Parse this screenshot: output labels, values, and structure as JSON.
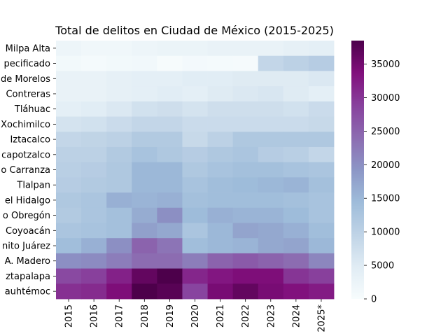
{
  "chart_data": {
    "type": "heatmap",
    "title": "Total de delitos en Ciudad de México (2015-2025)",
    "xlabel": "",
    "ylabel": "",
    "colormap": "BuPu",
    "colorbar_range": [
      0,
      38500
    ],
    "colorbar_ticks": [
      0,
      5000,
      10000,
      15000,
      20000,
      25000,
      30000,
      35000
    ],
    "x": [
      "2015",
      "2016",
      "2017",
      "2018",
      "2019",
      "2020",
      "2021",
      "2022",
      "2023",
      "2024",
      "2025*"
    ],
    "rows": [
      "Milpa Alta",
      "pecificado",
      "de Morelos",
      "Contreras",
      "Tláhuac",
      "Xochimilco",
      "Iztacalco",
      "capotzalco",
      "o Carranza",
      "Tlalpan",
      "el Hidalgo",
      "o Obregón",
      "Coyoacán",
      "nito Juárez",
      "A. Madero",
      "ztapalapa",
      "auhtémoc"
    ],
    "values": [
      [
        2000,
        1500,
        1500,
        2000,
        2500,
        2500,
        3000,
        3000,
        3000,
        3500,
        4000
      ],
      [
        1000,
        700,
        1000,
        1200,
        300,
        800,
        600,
        500,
        9000,
        10000,
        11000
      ],
      [
        3000,
        3000,
        3500,
        4000,
        4000,
        4500,
        4500,
        5000,
        5000,
        5000,
        5500
      ],
      [
        3000,
        3000,
        3500,
        4000,
        4500,
        4000,
        5000,
        5500,
        6000,
        5000,
        4000
      ],
      [
        4000,
        4500,
        5500,
        7000,
        7500,
        6500,
        7500,
        7500,
        7500,
        7000,
        8000
      ],
      [
        6500,
        7000,
        8000,
        9000,
        9000,
        8000,
        8000,
        8000,
        8000,
        8000,
        8500
      ],
      [
        9000,
        9500,
        10000,
        11500,
        11500,
        8500,
        10000,
        12000,
        12000,
        12000,
        12000
      ],
      [
        10000,
        10000,
        11500,
        13000,
        12000,
        11000,
        12000,
        12500,
        11000,
        10500,
        9000
      ],
      [
        10500,
        11000,
        12000,
        15000,
        15000,
        12000,
        13000,
        13500,
        13500,
        13000,
        12500
      ],
      [
        11000,
        11500,
        12000,
        15000,
        15000,
        13000,
        14000,
        14500,
        15000,
        15500,
        13500
      ],
      [
        12000,
        12500,
        16000,
        15500,
        16000,
        13500,
        14000,
        14000,
        14000,
        13500,
        13000
      ],
      [
        11500,
        12500,
        13500,
        16500,
        20000,
        14500,
        16000,
        15500,
        15500,
        14500,
        13000
      ],
      [
        12500,
        13000,
        13500,
        18000,
        17000,
        12500,
        15000,
        17500,
        17000,
        16000,
        14000
      ],
      [
        14000,
        16000,
        20000,
        25000,
        23000,
        14000,
        15000,
        15500,
        17000,
        17500,
        15000
      ],
      [
        20000,
        20500,
        22000,
        24000,
        24000,
        22000,
        25000,
        26000,
        25000,
        24000,
        21000
      ],
      [
        28000,
        29000,
        32000,
        36500,
        38500,
        31500,
        33000,
        34000,
        34000,
        30000,
        29000
      ],
      [
        30500,
        31000,
        34000,
        38500,
        37500,
        28500,
        34500,
        36500,
        34500,
        33500,
        32500
      ]
    ]
  }
}
